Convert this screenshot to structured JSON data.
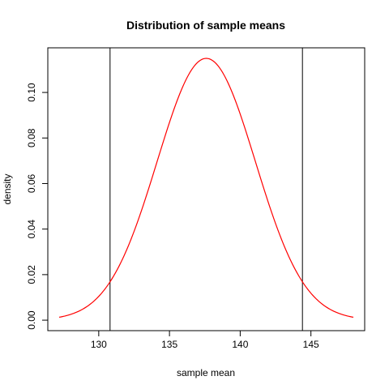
{
  "chart_data": {
    "type": "line",
    "title": "Distribution of sample means",
    "xlabel": "sample mean",
    "ylabel": "density",
    "xlim": [
      126.4,
      148.8
    ],
    "ylim": [
      -0.0046,
      0.1196
    ],
    "x_ticks": [
      130,
      135,
      140,
      145
    ],
    "y_ticks": [
      0.0,
      0.02,
      0.04,
      0.06,
      0.08,
      0.1
    ],
    "y_tick_labels": [
      "0.00",
      "0.02",
      "0.04",
      "0.06",
      "0.08",
      "0.10"
    ],
    "grid": false,
    "legend": "none",
    "series": [
      {
        "color": "#ff0000",
        "distribution": "normal",
        "mean": 137.6,
        "sd": 3.47,
        "x_range": [
          127.2,
          148.0
        ],
        "x": [
          127.2,
          128.0,
          129.0,
          130.0,
          131.0,
          132.0,
          133.0,
          134.0,
          135.0,
          136.0,
          137.0,
          137.6,
          138.0,
          139.0,
          140.0,
          141.0,
          142.0,
          143.0,
          144.0,
          145.0,
          146.0,
          147.0,
          148.0
        ],
        "y": [
          0.0014,
          0.0025,
          0.0049,
          0.0103,
          0.0187,
          0.031,
          0.0474,
          0.0668,
          0.0867,
          0.1036,
          0.1135,
          0.115,
          0.1146,
          0.1039,
          0.0906,
          0.0708,
          0.0511,
          0.034,
          0.0209,
          0.0117,
          0.0061,
          0.0029,
          0.0013
        ]
      }
    ],
    "vertical_lines": [
      {
        "x": 130.8,
        "color": "#000000"
      },
      {
        "x": 144.4,
        "color": "#000000"
      }
    ]
  }
}
